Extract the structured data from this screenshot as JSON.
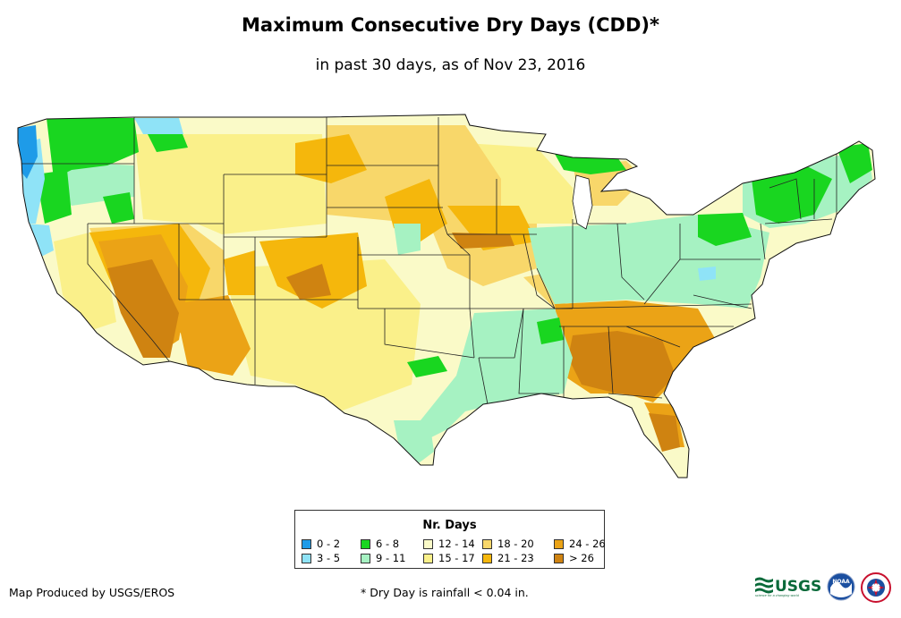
{
  "title": "Maximum Consecutive Dry Days (CDD)*",
  "subtitle": "in past 30 days, as of Nov 23, 2016",
  "legend": {
    "title": "Nr. Days",
    "classes": [
      {
        "label": "0 - 2",
        "color": "#1e9be8"
      },
      {
        "label": "3 - 5",
        "color": "#8fe3f7"
      },
      {
        "label": "6 - 8",
        "color": "#19d620"
      },
      {
        "label": "9 - 11",
        "color": "#a6f2c2"
      },
      {
        "label": "12 - 14",
        "color": "#fafac8"
      },
      {
        "label": "15 - 17",
        "color": "#faf08a"
      },
      {
        "label": "18 - 20",
        "color": "#f8d76a"
      },
      {
        "label": "21 - 23",
        "color": "#f5b70c"
      },
      {
        "label": "24 - 26",
        "color": "#eba316"
      },
      {
        "label": "> 26",
        "color": "#cf8311"
      }
    ]
  },
  "credit": "Map Produced by USGS/EROS",
  "footnote": "* Dry Day is rainfall < 0.04 in.",
  "logos": {
    "usgs_text": "USGS",
    "usgs_tagline": "science for a changing world",
    "noaa_text": "NOAA"
  }
}
